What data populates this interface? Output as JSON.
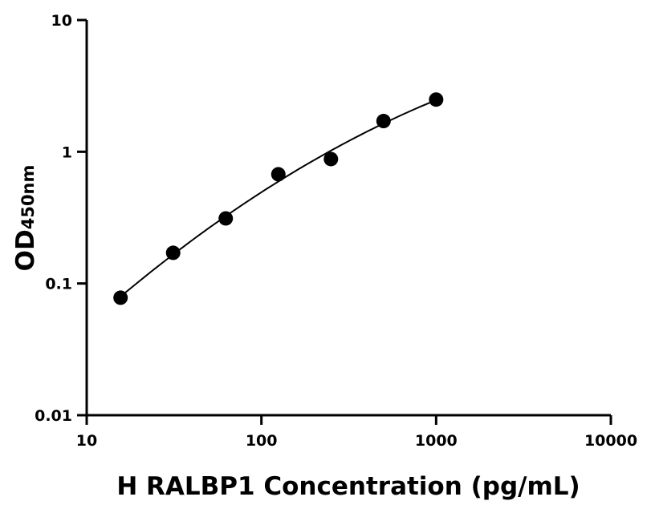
{
  "chart_data": {
    "type": "scatter",
    "title": "",
    "xlabel": "H RALBP1 Concentration (pg/mL)",
    "ylabel_main": "OD",
    "ylabel_sub": "450nm",
    "xscale": "log",
    "yscale": "log",
    "xlim": [
      10,
      10000
    ],
    "ylim": [
      0.01,
      10
    ],
    "xticks": [
      "10",
      "100",
      "1000",
      "10000"
    ],
    "yticks": [
      "0.01",
      "0.1",
      "1",
      "10"
    ],
    "grid": false,
    "fit_curve": true,
    "color": "#000000",
    "points": [
      {
        "x": 15.625,
        "y": 0.078
      },
      {
        "x": 31.25,
        "y": 0.171
      },
      {
        "x": 62.5,
        "y": 0.312
      },
      {
        "x": 125,
        "y": 0.675
      },
      {
        "x": 250,
        "y": 0.88
      },
      {
        "x": 500,
        "y": 1.71
      },
      {
        "x": 1000,
        "y": 2.49
      }
    ]
  }
}
